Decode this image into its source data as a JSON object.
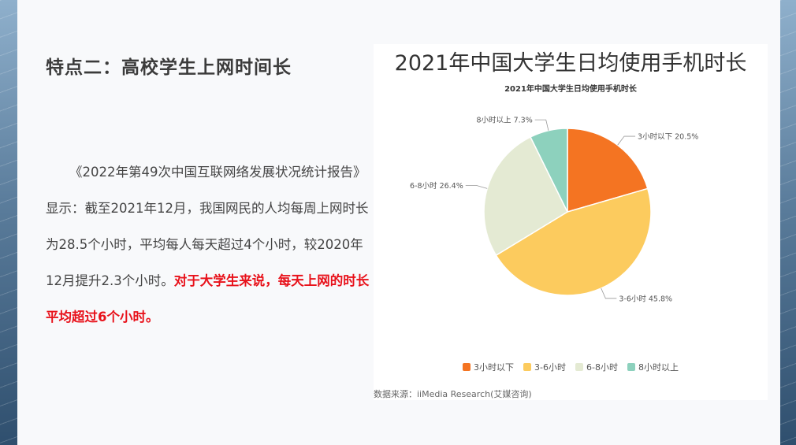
{
  "slide": {
    "heading": "特点二：高校学生上网时间长",
    "body_text": "《2022年第49次中国互联网络发展状况统计报告》显示：截至2021年12月，我国网民的人均每周上网时长为28.5个小时，平均每人每天超过4个小时，较2020年12月提升2.3个小时。",
    "body_highlight": "对于大学生来说，每天上网的时长平均超过6个小时。",
    "source": "数据来源：iiMedia Research(艾媒咨询)"
  },
  "chart_data": {
    "type": "pie",
    "title": "2021年中国大学生日均使用手机时长",
    "subtitle": "2021年中国大学生日均使用手机时长",
    "categories": [
      "3小时以下",
      "3-6小时",
      "6-8小时",
      "8小时以上"
    ],
    "values": [
      20.5,
      45.8,
      26.4,
      7.3
    ],
    "unit": "%",
    "colors": [
      "#f47422",
      "#fccb5e",
      "#e4ead3",
      "#8dd1bd"
    ],
    "slice_labels": [
      "3小时以下 20.5%",
      "3-6小时 45.8%",
      "6-8小时 26.4%",
      "8小时以上 7.3%"
    ],
    "legend_position": "bottom"
  }
}
